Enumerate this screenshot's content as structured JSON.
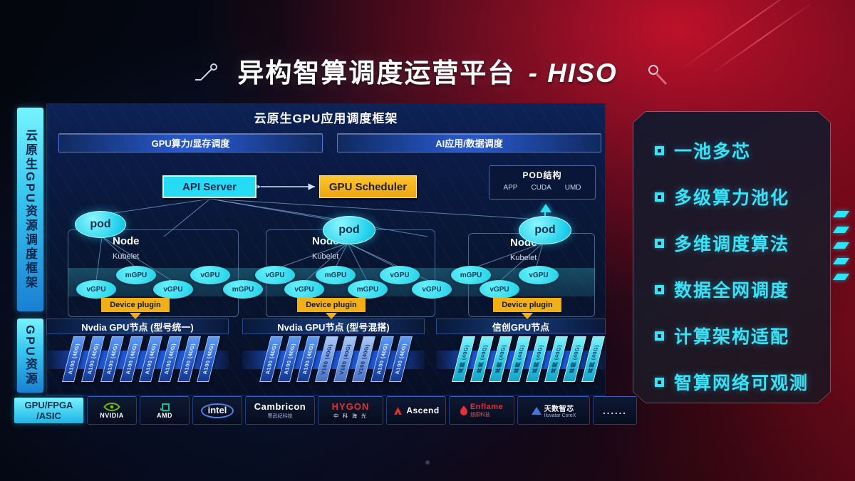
{
  "title": {
    "zh": "异构智算调度运营平台",
    "en": "- HISO"
  },
  "sidebar": {
    "top": "云原生GPU资源调度框架",
    "bottom": "GPU资源"
  },
  "framework": {
    "header": "云原生GPU应用调度框架",
    "bar_left": "GPU算力/显存调度",
    "bar_right": "AI应用/数据调度"
  },
  "control": {
    "api_server": "API Server",
    "gpu_scheduler": "GPU Scheduler",
    "pod_box": {
      "title": "POD结构",
      "items": [
        "APP",
        "CUDA",
        "UMD"
      ]
    }
  },
  "node": {
    "label": "Node",
    "agent": "Kubelet",
    "pod": "pod",
    "device_plugin": "Device plugin"
  },
  "gpu_units": [
    "vGPU",
    "mGPU",
    "vGPU",
    "vGPU",
    "mGPU",
    "vGPU",
    "vGPU",
    "mGPU",
    "mGPU",
    "vGPU",
    "vGPU",
    "mGPU",
    "vGPU",
    "vGPU"
  ],
  "gpu_groups": [
    {
      "header": "Nvdia GPU节点 (型号统一)",
      "cards": [
        "A100 (40G)",
        "A100 (40G)",
        "A100 (40G)",
        "A100 (40G)",
        "A100 (40G)",
        "A100 (40G)",
        "A100 (40G)",
        "A100 (40G)"
      ]
    },
    {
      "header": "Nvdia GPU节点 (型号混搭)",
      "cards": [
        "A100 (40G)",
        "A100 (40G)",
        "A100 (40G)",
        "V100 (40G)",
        "V100 (40G)",
        "V100 (40G)",
        "A100 (40G)",
        "A100 (40G)"
      ]
    },
    {
      "header": "信创GPU节点",
      "cards": [
        "昇腾 (40G)",
        "昇腾 (40G)",
        "昇腾 (40G)",
        "昇腾 (40G)",
        "昇腾 (40G)",
        "昇腾 (40G)",
        "昇腾 (40G)",
        "昇腾 (40G)"
      ]
    }
  ],
  "vendors": {
    "label_line1": "GPU/FPGA",
    "label_line2": "/ASIC",
    "logos": [
      {
        "text": "NVIDIA"
      },
      {
        "text": "AMD"
      },
      {
        "text": "intel"
      },
      {
        "text": "Cambricon",
        "sub": "寒武纪科技"
      },
      {
        "text": "HYGON",
        "sub": "中 科 海 光"
      },
      {
        "text": "Ascend"
      },
      {
        "text": "Enflame",
        "sub": "燧原科技"
      },
      {
        "text": "天数智芯",
        "sub": "Iluvatar CoreX"
      },
      {
        "text": "......"
      }
    ]
  },
  "features": {
    "items": [
      "一池多芯",
      "多级算力池化",
      "多维调度算法",
      "数据全网调度",
      "计算架构适配",
      "智算网络可观测"
    ]
  },
  "colors": {
    "accent_cyan": "#2fe3f6",
    "accent_yellow": "#f2af16",
    "card_blue": "#2f6ce0",
    "card_cyan": "#35dff2",
    "brand_red": "#c41230"
  }
}
